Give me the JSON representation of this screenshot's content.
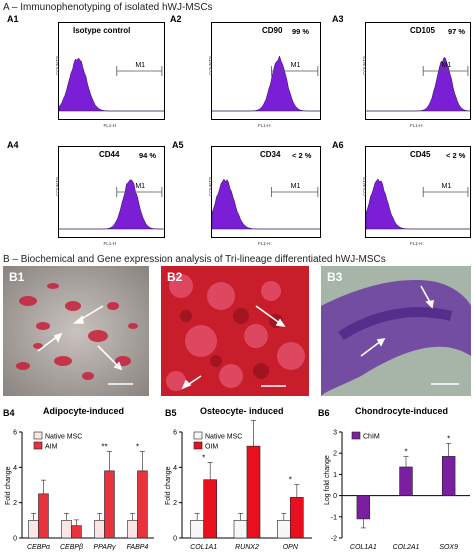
{
  "section_a": {
    "title": "A – Immunophenotyping  of isolated hWJ-MSCs"
  },
  "section_b": {
    "title": "B – Biochemical and Gene expression analysis of Tri-lineage differentiated hWJ-MSCs"
  },
  "histograms": {
    "a1": {
      "label": "A1",
      "marker": "Isotype control",
      "pct": ""
    },
    "a2": {
      "label": "A2",
      "marker": "CD90",
      "pct": "99 %"
    },
    "a3": {
      "label": "A3",
      "marker": "CD105",
      "pct": "97 %"
    },
    "a4": {
      "label": "A4",
      "marker": "CD44",
      "pct": "94 %"
    },
    "a5": {
      "label": "A5",
      "marker": "CD34",
      "pct": "< 2 %"
    },
    "a6": {
      "label": "A6",
      "marker": "CD45",
      "pct": "< 2 %"
    },
    "gate": "M1",
    "ylabel": "COUNTS",
    "xlabel": "FL1-H",
    "fill_color": "#7b1fd6"
  },
  "micrographs": {
    "b1": {
      "label": "B1"
    },
    "b2": {
      "label": "B2"
    },
    "b3": {
      "label": "B3"
    }
  },
  "panel_labels": {
    "b4": "B4",
    "b5": "B5",
    "b6": "B6"
  },
  "chart_data": [
    {
      "type": "bar",
      "title": "Adipocyte-induced",
      "ylabel": "Fold change",
      "categories": [
        "CEBPα",
        "CEBPβ",
        "PPARγ",
        "FABP4"
      ],
      "series": [
        {
          "name": "Native MSC",
          "values": [
            1,
            1,
            1,
            1
          ],
          "color": "#fbe6e6"
        },
        {
          "name": "AIM",
          "values": [
            2.5,
            0.7,
            3.8,
            3.8
          ],
          "color": "#e8323c"
        }
      ],
      "ylim": [
        0,
        6
      ],
      "yticks": [
        "0",
        "2",
        "4",
        "6"
      ],
      "annotations": [
        {
          "category": "PPARγ",
          "text": "**"
        },
        {
          "category": "FABP4",
          "text": "*"
        }
      ]
    },
    {
      "type": "bar",
      "title": "Osteocyte- induced",
      "ylabel": "Fold change",
      "categories": [
        "COL1A1",
        "RUNX2",
        "OPN"
      ],
      "series": [
        {
          "name": "Native MSC",
          "values": [
            1,
            1,
            1
          ],
          "color": "#f7f7f7"
        },
        {
          "name": "OIM",
          "values": [
            3.3,
            5.2,
            2.3
          ],
          "color": "#e8101e"
        }
      ],
      "ylim": [
        0,
        6
      ],
      "yticks": [
        "0",
        "2",
        "4",
        "6"
      ],
      "annotations": [
        {
          "category": "COL1A1",
          "text": "*"
        },
        {
          "category": "RUNX2",
          "text": "**"
        },
        {
          "category": "OPN",
          "text": "*"
        }
      ]
    },
    {
      "type": "bar",
      "title": "Chondrocyte-induced",
      "ylabel": "Log fold change",
      "categories": [
        "COL1A1",
        "COL2A1",
        "SOX9"
      ],
      "series": [
        {
          "name": "ChIM",
          "values": [
            -1.1,
            1.35,
            1.85
          ],
          "color": "#7a1fa0"
        }
      ],
      "ylim": [
        -2,
        3
      ],
      "yticks": [
        "-2",
        "-1",
        "0",
        "1",
        "2",
        "3"
      ],
      "annotations": [
        {
          "category": "COL2A1",
          "text": "*"
        },
        {
          "category": "SOX9",
          "text": "*"
        }
      ]
    }
  ]
}
